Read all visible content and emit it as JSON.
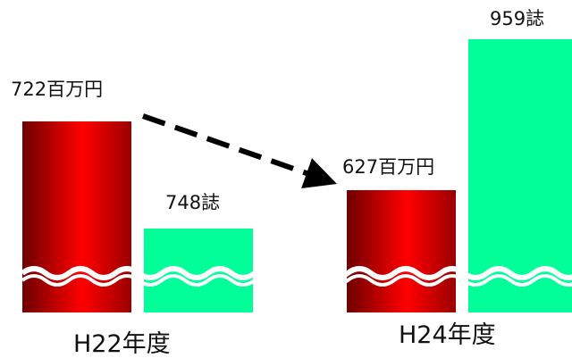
{
  "chart_data": {
    "type": "bar",
    "categories": [
      "H22年度",
      "H24年度"
    ],
    "series": [
      {
        "values": [
          722,
          627
        ],
        "labels": [
          "722百万円",
          "627百万円"
        ],
        "color": "#e00000"
      },
      {
        "values": [
          748,
          959
        ],
        "labels": [
          "748誌",
          "959誌"
        ],
        "color": "#00ff99"
      }
    ],
    "axis_break": true,
    "annotation": "dashed arrow from H22 budget bar to H24 budget bar (decrease)"
  }
}
